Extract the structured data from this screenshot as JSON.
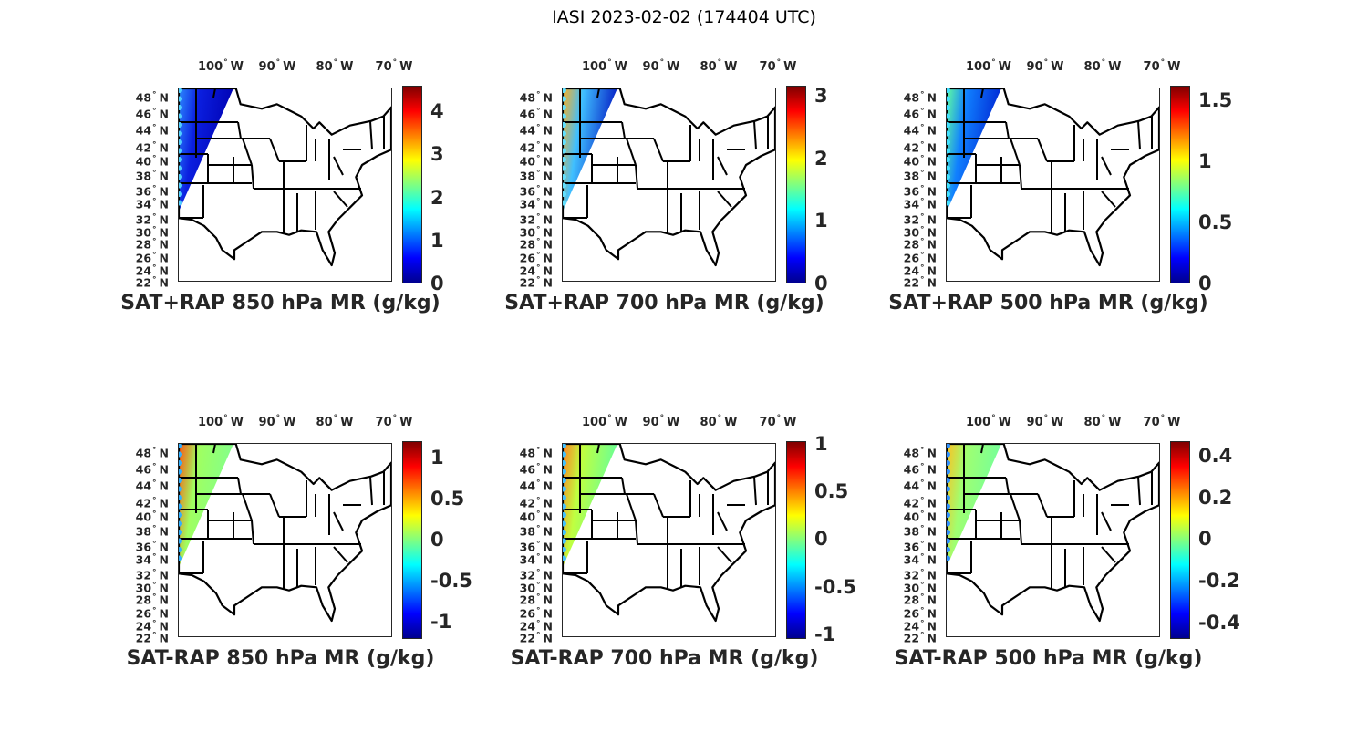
{
  "suptitle": "IASI 2023-02-02 (174404 UTC)",
  "lon_labels": [
    "100",
    "90",
    "80",
    "70"
  ],
  "lon_hemisphere": "W",
  "lat_labels": [
    "48",
    "46",
    "44",
    "42",
    "40",
    "38",
    "36",
    "34",
    "32",
    "30",
    "28",
    "26",
    "24",
    "22"
  ],
  "lat_hemisphere": "N",
  "degree_symbol": "°",
  "panels": [
    {
      "title": "SAT+RAP 850 hPa MR (g/kg)",
      "clim": [
        0,
        4.6
      ],
      "ticks": [
        "0",
        "1",
        "2",
        "3",
        "4"
      ],
      "swath_colors": [
        "#2d8cff",
        "#0b1fe0",
        "#0000b0"
      ],
      "edge_color": "#50d0ff"
    },
    {
      "title": "SAT+RAP 700 hPa MR (g/kg)",
      "clim": [
        0,
        3.16
      ],
      "ticks": [
        "0",
        "1",
        "2",
        "3"
      ],
      "swath_colors": [
        "#ffb020",
        "#40c0ff",
        "#0010c0"
      ],
      "edge_color": "#60e0ff"
    },
    {
      "title": "SAT+RAP 500 hPa MR (g/kg)",
      "clim": [
        0,
        1.62
      ],
      "ticks": [
        "0",
        "0.5",
        "1",
        "1.5"
      ],
      "swath_colors": [
        "#60ffa0",
        "#1080ff",
        "#0020d0"
      ],
      "edge_color": "#40e0ff"
    },
    {
      "title": "SAT-RAP 850 hPa MR (g/kg)",
      "clim": [
        -1.21,
        1.2
      ],
      "ticks": [
        "-1",
        "-0.5",
        "0",
        "0.5",
        "1"
      ],
      "swath_colors": [
        "#ff5010",
        "#a0ff60",
        "#80ff90"
      ],
      "edge_color": "#30b0ff"
    },
    {
      "title": "SAT-RAP 700 hPa MR (g/kg)",
      "clim": [
        -1.05,
        1.03
      ],
      "ticks": [
        "-1",
        "-0.5",
        "0",
        "0.5",
        "1"
      ],
      "swath_colors": [
        "#ff8020",
        "#c0ff40",
        "#60ffa0"
      ],
      "edge_color": "#40c0ff"
    },
    {
      "title": "SAT-RAP 500 hPa MR (g/kg)",
      "clim": [
        -0.48,
        0.47
      ],
      "ticks": [
        "-0.4",
        "-0.2",
        "0",
        "0.2",
        "0.4"
      ],
      "swath_colors": [
        "#ffc020",
        "#a0ff70",
        "#70ffa0"
      ],
      "edge_color": "#3090ff"
    }
  ]
}
